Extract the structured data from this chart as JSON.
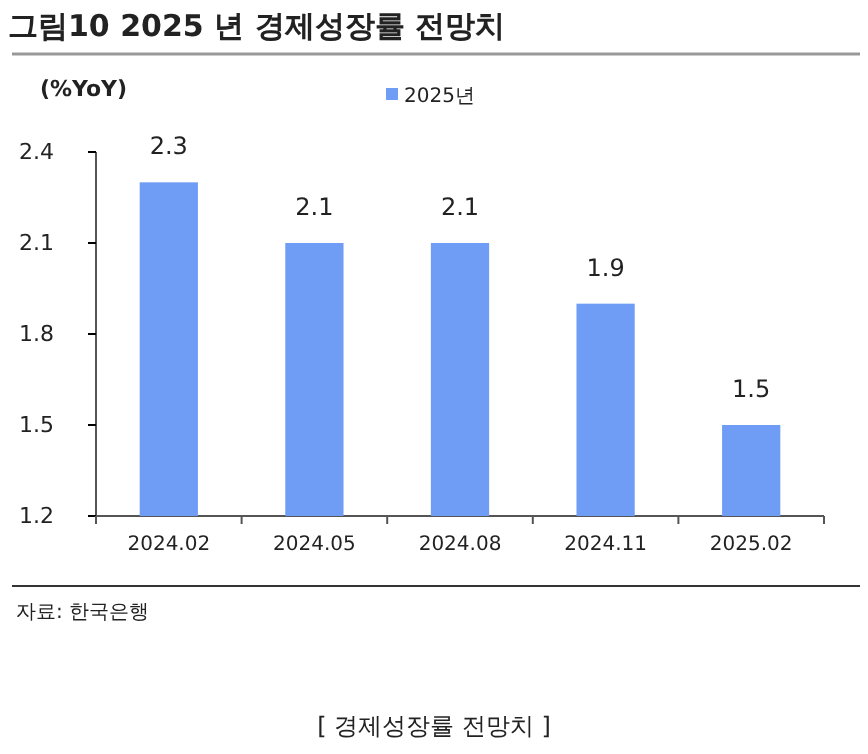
{
  "chart_data": {
    "type": "bar",
    "title": "그림10 2025 년 경제성장률 전망치",
    "ylabel": "(%YoY)",
    "categories": [
      "2024.02",
      "2024.05",
      "2024.08",
      "2024.11",
      "2025.02"
    ],
    "series": [
      {
        "name": "2025년",
        "color": "#6f9cf5",
        "values": [
          2.3,
          2.1,
          2.1,
          1.9,
          1.5
        ]
      }
    ],
    "ylim": [
      1.2,
      2.4
    ],
    "yticks": [
      1.2,
      1.5,
      1.8,
      2.1,
      2.4
    ],
    "grid": false,
    "legend": "top",
    "data_labels": true,
    "annotations": [
      "자료: 한국은행",
      "[ 경제성장률 전망치 ]"
    ]
  }
}
